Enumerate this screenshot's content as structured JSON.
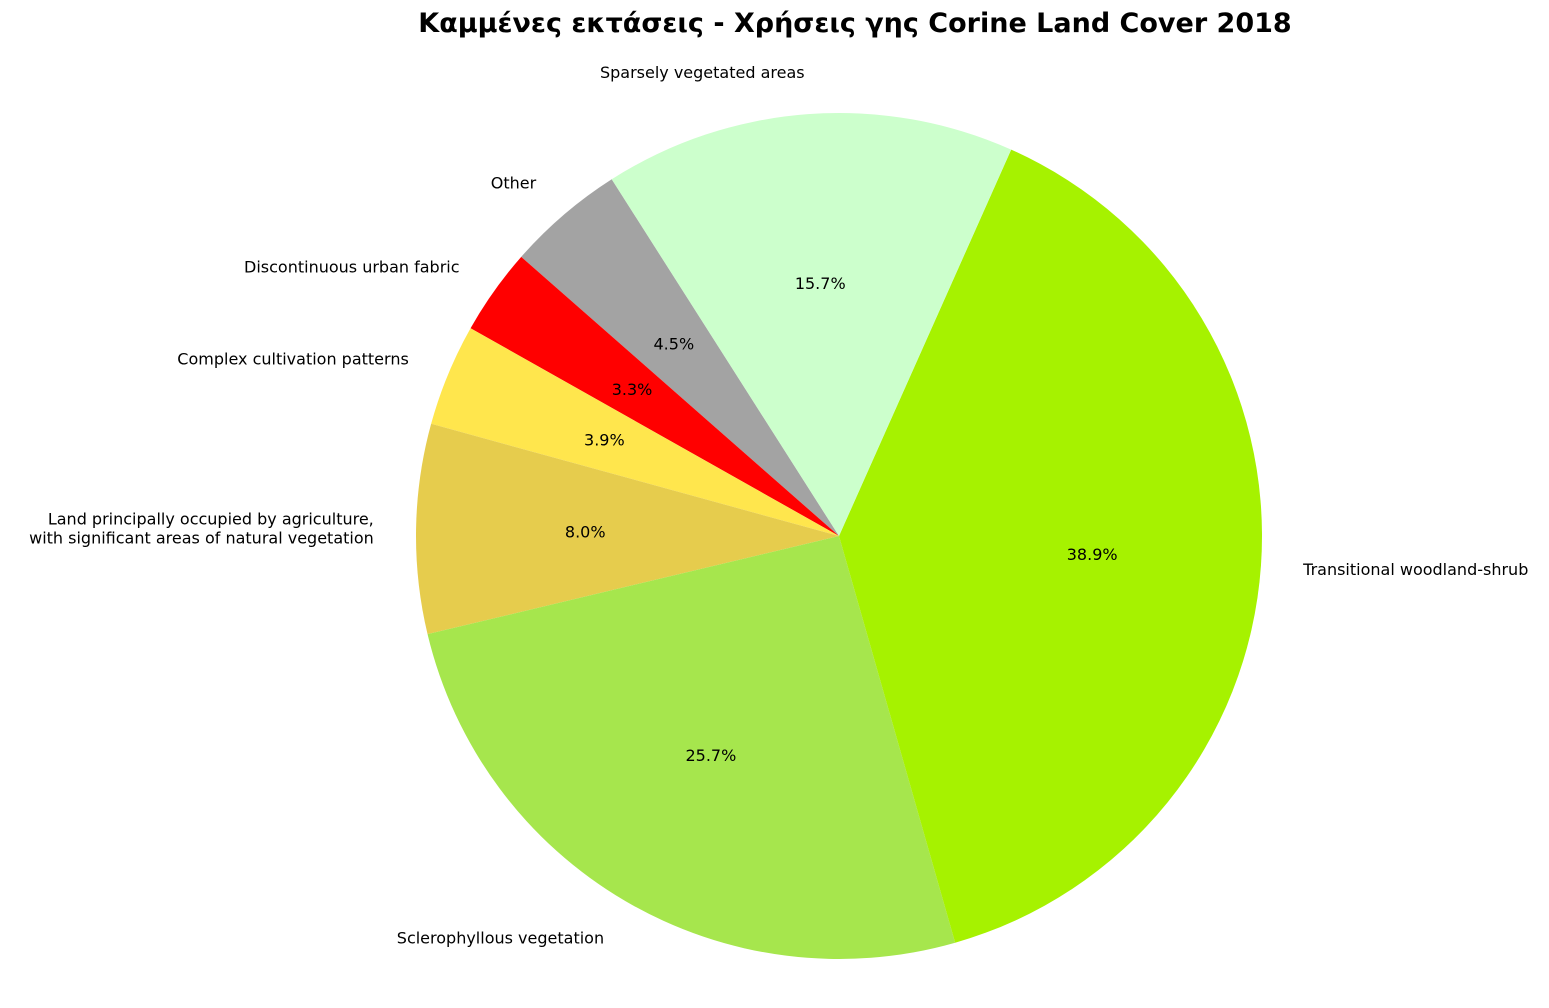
{
  "chart_data": {
    "type": "pie",
    "title": "Καμμένες εκτάσεις - Χρήσεις γης Corine Land Cover 2018",
    "start_angle_deg": 122.5,
    "direction": "counterclockwise",
    "slices": [
      {
        "label": "Other",
        "value": 4.5,
        "pct_label": "4.5%",
        "color": "#a3a3a3"
      },
      {
        "label": "Discontinuous urban fabric",
        "value": 3.3,
        "pct_label": "3.3%",
        "color": "#ff0000"
      },
      {
        "label": "Complex cultivation patterns",
        "value": 3.9,
        "pct_label": "3.9%",
        "color": "#ffe64d"
      },
      {
        "label": "Land principally occupied by agriculture,\nwith significant areas of natural vegetation",
        "value": 8.0,
        "pct_label": "8.0%",
        "color": "#e6cc4d"
      },
      {
        "label": "Sclerophyllous vegetation",
        "value": 25.7,
        "pct_label": "25.7%",
        "color": "#a6e64d"
      },
      {
        "label": "Transitional woodland-shrub",
        "value": 38.9,
        "pct_label": "38.9%",
        "color": "#a6f200"
      },
      {
        "label": "Sparsely vegetated areas",
        "value": 15.7,
        "pct_label": "15.7%",
        "color": "#ccffcc"
      }
    ]
  }
}
